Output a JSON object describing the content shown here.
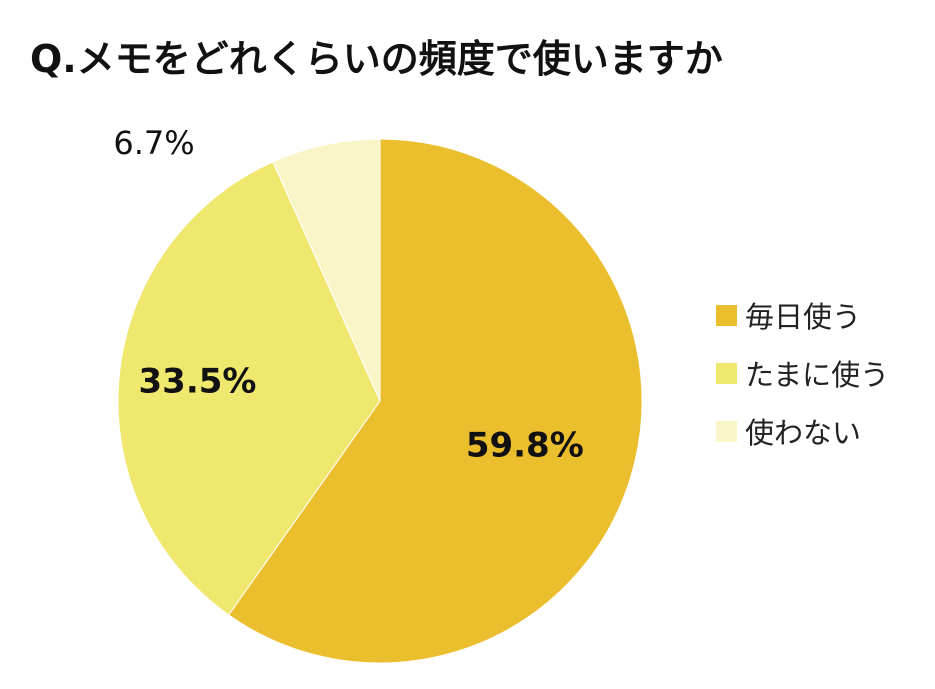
{
  "title": "Q.メモをどれくらいの頻度で使いますか",
  "chart_data": {
    "type": "pie",
    "title": "Q.メモをどれくらいの頻度で使いますか",
    "start": "top",
    "direction": "clockwise",
    "legend_position": "right",
    "slices": [
      {
        "label": "毎日使う",
        "value": 59.8,
        "display": "59.8%",
        "color": "#ebbe2e"
      },
      {
        "label": "たまに使う",
        "value": 33.5,
        "display": "33.5%",
        "color": "#efe76e"
      },
      {
        "label": "使わない",
        "value": 6.7,
        "display": "6.7%",
        "color": "#f9f5c7"
      }
    ]
  }
}
